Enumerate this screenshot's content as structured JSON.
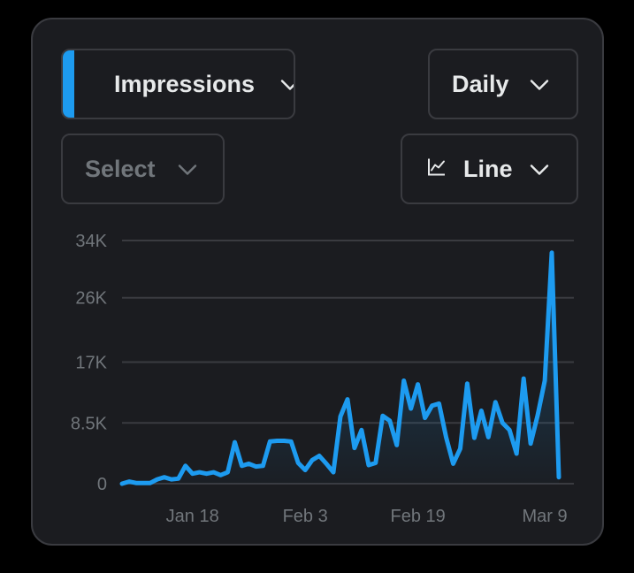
{
  "controls": {
    "metric": {
      "label": "Impressions",
      "swatch_color": "#1d9bf0",
      "icon": "chevron-down-icon"
    },
    "period": {
      "label": "Daily",
      "icon": "chevron-down-icon"
    },
    "compare": {
      "label": "Select",
      "icon": "chevron-down-icon"
    },
    "chart_type": {
      "label": "Line",
      "icon": "line-chart-icon"
    }
  },
  "colors": {
    "line": "#1d9bf0",
    "grid": "#3a3b40",
    "tick_text": "#71767b",
    "card_bg": "#1b1c20"
  },
  "chart_data": {
    "type": "line",
    "title": "",
    "xlabel": "",
    "ylabel": "",
    "x_range": [
      "2025-01-08",
      "2025-03-11"
    ],
    "ylim": [
      0,
      34000
    ],
    "y_ticks": [
      0,
      8500,
      17000,
      26000,
      34000
    ],
    "y_tick_labels": [
      "0",
      "8.5K",
      "17K",
      "26K",
      "34K"
    ],
    "x_ticks": [
      "2025-01-18",
      "2025-02-03",
      "2025-02-19",
      "2025-03-09"
    ],
    "x_tick_labels": [
      "Jan 18",
      "Feb 3",
      "Feb 19",
      "Mar 9"
    ],
    "grid": true,
    "area_fill": true,
    "series": [
      {
        "values": [
          [
            "2025-01-08",
            0
          ],
          [
            "2025-01-09",
            300
          ],
          [
            "2025-01-10",
            100
          ],
          [
            "2025-01-11",
            100
          ],
          [
            "2025-01-12",
            100
          ],
          [
            "2025-01-13",
            600
          ],
          [
            "2025-01-14",
            900
          ],
          [
            "2025-01-15",
            600
          ],
          [
            "2025-01-16",
            700
          ],
          [
            "2025-01-17",
            2500
          ],
          [
            "2025-01-18",
            1400
          ],
          [
            "2025-01-19",
            1600
          ],
          [
            "2025-01-20",
            1400
          ],
          [
            "2025-01-21",
            1600
          ],
          [
            "2025-01-22",
            1200
          ],
          [
            "2025-01-23",
            1600
          ],
          [
            "2025-01-24",
            5800
          ],
          [
            "2025-01-25",
            2500
          ],
          [
            "2025-01-26",
            2800
          ],
          [
            "2025-01-27",
            2400
          ],
          [
            "2025-01-28",
            2500
          ],
          [
            "2025-01-29",
            5900
          ],
          [
            "2025-01-30",
            6000
          ],
          [
            "2025-01-31",
            6000
          ],
          [
            "2025-02-01",
            5900
          ],
          [
            "2025-02-02",
            2900
          ],
          [
            "2025-02-03",
            1900
          ],
          [
            "2025-02-04",
            3300
          ],
          [
            "2025-02-05",
            3900
          ],
          [
            "2025-02-06",
            2800
          ],
          [
            "2025-02-07",
            1600
          ],
          [
            "2025-02-08",
            9400
          ],
          [
            "2025-02-09",
            11800
          ],
          [
            "2025-02-10",
            5000
          ],
          [
            "2025-02-11",
            7500
          ],
          [
            "2025-02-12",
            2600
          ],
          [
            "2025-02-13",
            2900
          ],
          [
            "2025-02-14",
            9500
          ],
          [
            "2025-02-15",
            8800
          ],
          [
            "2025-02-16",
            5400
          ],
          [
            "2025-02-17",
            14400
          ],
          [
            "2025-02-18",
            10500
          ],
          [
            "2025-02-19",
            13900
          ],
          [
            "2025-02-20",
            9200
          ],
          [
            "2025-02-21",
            10900
          ],
          [
            "2025-02-22",
            11200
          ],
          [
            "2025-02-23",
            6500
          ],
          [
            "2025-02-24",
            2800
          ],
          [
            "2025-02-25",
            4900
          ],
          [
            "2025-02-26",
            14000
          ],
          [
            "2025-02-27",
            6400
          ],
          [
            "2025-02-28",
            10200
          ],
          [
            "2025-03-01",
            6500
          ],
          [
            "2025-03-02",
            11400
          ],
          [
            "2025-03-03",
            8500
          ],
          [
            "2025-03-04",
            7500
          ],
          [
            "2025-03-05",
            4200
          ],
          [
            "2025-03-06",
            14700
          ],
          [
            "2025-03-07",
            5600
          ],
          [
            "2025-03-08",
            9600
          ],
          [
            "2025-03-09",
            14400
          ],
          [
            "2025-03-10",
            32300
          ],
          [
            "2025-03-11",
            900
          ]
        ]
      }
    ]
  }
}
